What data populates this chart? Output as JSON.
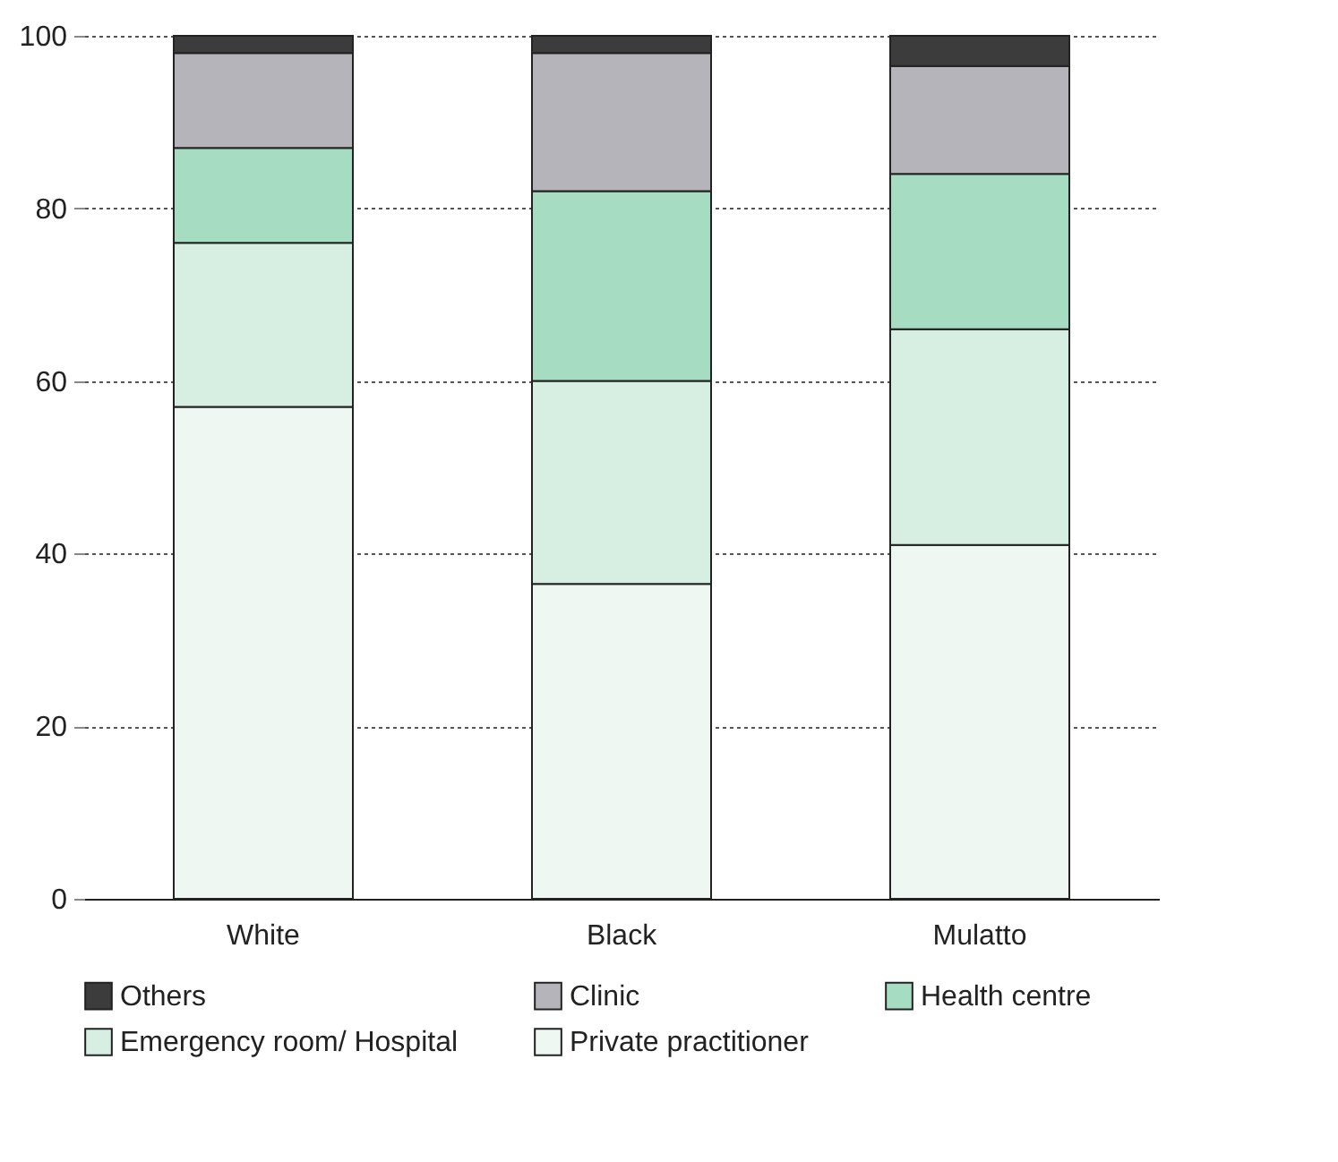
{
  "chart_data": {
    "type": "bar",
    "stacked": true,
    "categories": [
      "White",
      "Black",
      "Mulatto"
    ],
    "series": [
      {
        "name": "Private practitioner",
        "color": "#eef7f2",
        "values": [
          57,
          36.5,
          41
        ]
      },
      {
        "name": "Emergency room/ Hospital",
        "color": "#d6efe2",
        "values": [
          19,
          23.5,
          25
        ]
      },
      {
        "name": "Health centre",
        "color": "#a6dcc2",
        "values": [
          11,
          22,
          18
        ]
      },
      {
        "name": "Clinic",
        "color": "#b4b4ba",
        "values": [
          11,
          16,
          12.5
        ]
      },
      {
        "name": "Others",
        "color": "#3c3c3c",
        "values": [
          2,
          2,
          3.5
        ]
      }
    ],
    "ylim": [
      0,
      100
    ],
    "yticks": [
      0,
      20,
      40,
      60,
      80,
      100
    ],
    "grid": "y",
    "legend": "bottom"
  }
}
